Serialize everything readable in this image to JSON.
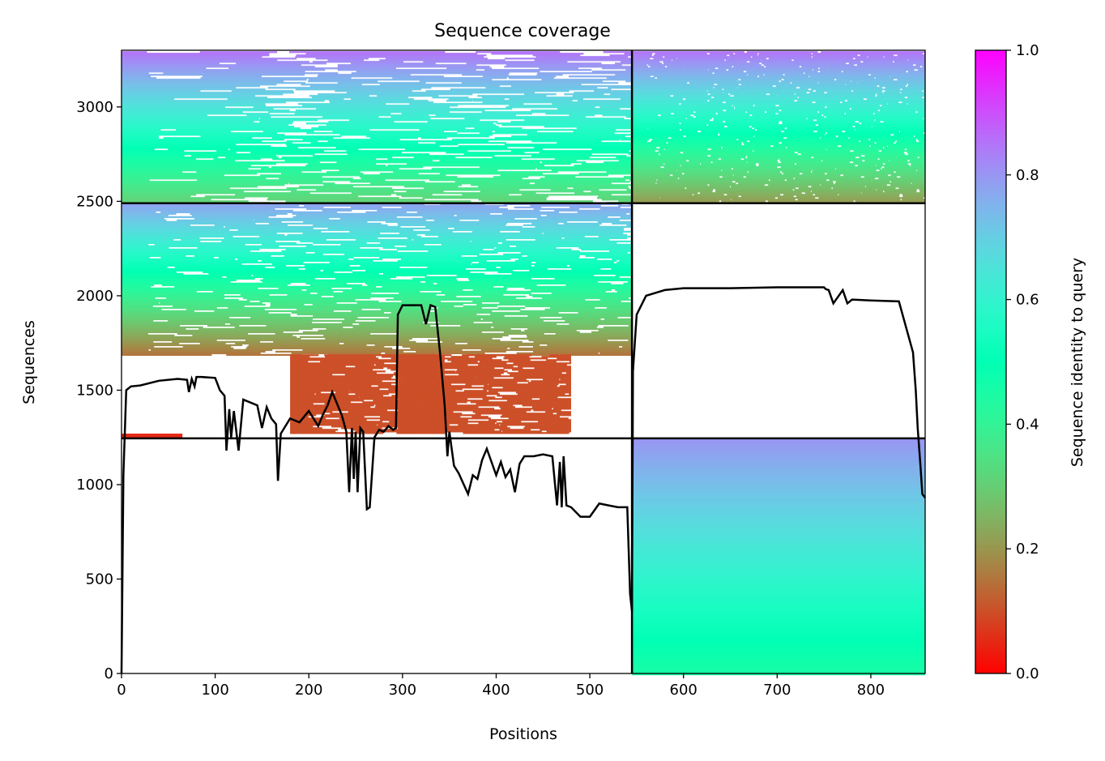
{
  "chart_data": {
    "type": "heatmap",
    "title": "Sequence coverage",
    "xlabel": "Positions",
    "ylabel": "Sequences",
    "xlim": [
      0,
      858
    ],
    "ylim": [
      0,
      3300
    ],
    "xticks": [
      "0",
      "100",
      "200",
      "300",
      "400",
      "500",
      "600",
      "700",
      "800"
    ],
    "yticks": [
      "0",
      "500",
      "1000",
      "1500",
      "2000",
      "2500",
      "3000"
    ],
    "colorbar": {
      "label": "Sequence identity to query",
      "range": [
        0.0,
        1.0
      ],
      "ticks": [
        "0.0",
        "0.2",
        "0.4",
        "0.6",
        "0.8",
        "1.0"
      ],
      "colormap": "rainbow_r"
    },
    "segment_boundary_x": 545,
    "block_boundaries_y": [
      1245,
      2490
    ],
    "blocks": [
      {
        "x0": 0,
        "x1": 545,
        "y0": 2490,
        "y1": 3295,
        "identity_top": 0.85,
        "identity_bottom": 0.3,
        "fill_density": 0.55
      },
      {
        "x0": 545,
        "x1": 858,
        "y0": 2490,
        "y1": 3295,
        "identity_top": 0.85,
        "identity_bottom": 0.2,
        "fill_density": 0.95
      },
      {
        "x0": 0,
        "x1": 545,
        "y0": 1690,
        "y1": 2490,
        "identity_top": 0.78,
        "identity_bottom": 0.15,
        "fill_density": 0.75
      },
      {
        "x0": 0,
        "x1": 65,
        "y0": 1245,
        "y1": 1270,
        "identity_top": 0.05,
        "identity_bottom": 0.05,
        "fill_density": 1.0
      },
      {
        "x0": 180,
        "x1": 480,
        "y0": 1270,
        "y1": 1690,
        "identity_top": 0.1,
        "identity_bottom": 0.1,
        "fill_density": 0.7
      },
      {
        "x0": 295,
        "x1": 345,
        "y0": 1270,
        "y1": 1690,
        "identity_top": 0.1,
        "identity_bottom": 0.1,
        "fill_density": 1.0
      },
      {
        "x0": 545,
        "x1": 858,
        "y0": 0,
        "y1": 1245,
        "identity_top": 0.8,
        "identity_bottom": 0.45,
        "fill_density": 0.98
      }
    ],
    "coverage_line": {
      "x": [
        0,
        2,
        5,
        10,
        20,
        40,
        60,
        70,
        72,
        75,
        78,
        80,
        85,
        100,
        105,
        110,
        112,
        115,
        117,
        120,
        125,
        130,
        140,
        145,
        150,
        155,
        160,
        165,
        167,
        170,
        180,
        190,
        200,
        205,
        210,
        215,
        220,
        225,
        230,
        235,
        240,
        243,
        246,
        248,
        250,
        252,
        255,
        258,
        262,
        265,
        270,
        275,
        280,
        285,
        290,
        293,
        295,
        300,
        310,
        320,
        325,
        330,
        335,
        340,
        345,
        348,
        350,
        355,
        360,
        370,
        375,
        380,
        385,
        390,
        395,
        400,
        405,
        410,
        415,
        420,
        425,
        430,
        440,
        450,
        460,
        465,
        468,
        470,
        472,
        475,
        480,
        490,
        500,
        510,
        520,
        530,
        540,
        543,
        545,
        546,
        548,
        550,
        560,
        580,
        600,
        650,
        700,
        750,
        752,
        755,
        760,
        770,
        775,
        780,
        800,
        830,
        845,
        848,
        850,
        853,
        855,
        858
      ],
      "y": [
        0,
        1050,
        1500,
        1520,
        1525,
        1550,
        1560,
        1555,
        1490,
        1560,
        1520,
        1570,
        1570,
        1565,
        1500,
        1470,
        1180,
        1400,
        1250,
        1390,
        1180,
        1450,
        1430,
        1420,
        1300,
        1410,
        1350,
        1320,
        1020,
        1270,
        1350,
        1330,
        1390,
        1350,
        1310,
        1370,
        1420,
        1490,
        1430,
        1370,
        1280,
        960,
        1300,
        1030,
        1280,
        960,
        1300,
        1280,
        870,
        880,
        1250,
        1290,
        1280,
        1310,
        1290,
        1300,
        1900,
        1950,
        1950,
        1950,
        1850,
        1950,
        1940,
        1700,
        1420,
        1150,
        1280,
        1100,
        1060,
        950,
        1050,
        1030,
        1130,
        1190,
        1120,
        1050,
        1120,
        1040,
        1080,
        960,
        1110,
        1150,
        1150,
        1160,
        1150,
        890,
        1120,
        880,
        1150,
        890,
        880,
        830,
        830,
        900,
        890,
        880,
        880,
        420,
        330,
        1600,
        1750,
        1900,
        2000,
        2030,
        2040,
        2040,
        2045,
        2045,
        2035,
        2030,
        1960,
        2030,
        1960,
        1980,
        1975,
        1970,
        1700,
        1500,
        1300,
        1100,
        950,
        930
      ]
    }
  }
}
